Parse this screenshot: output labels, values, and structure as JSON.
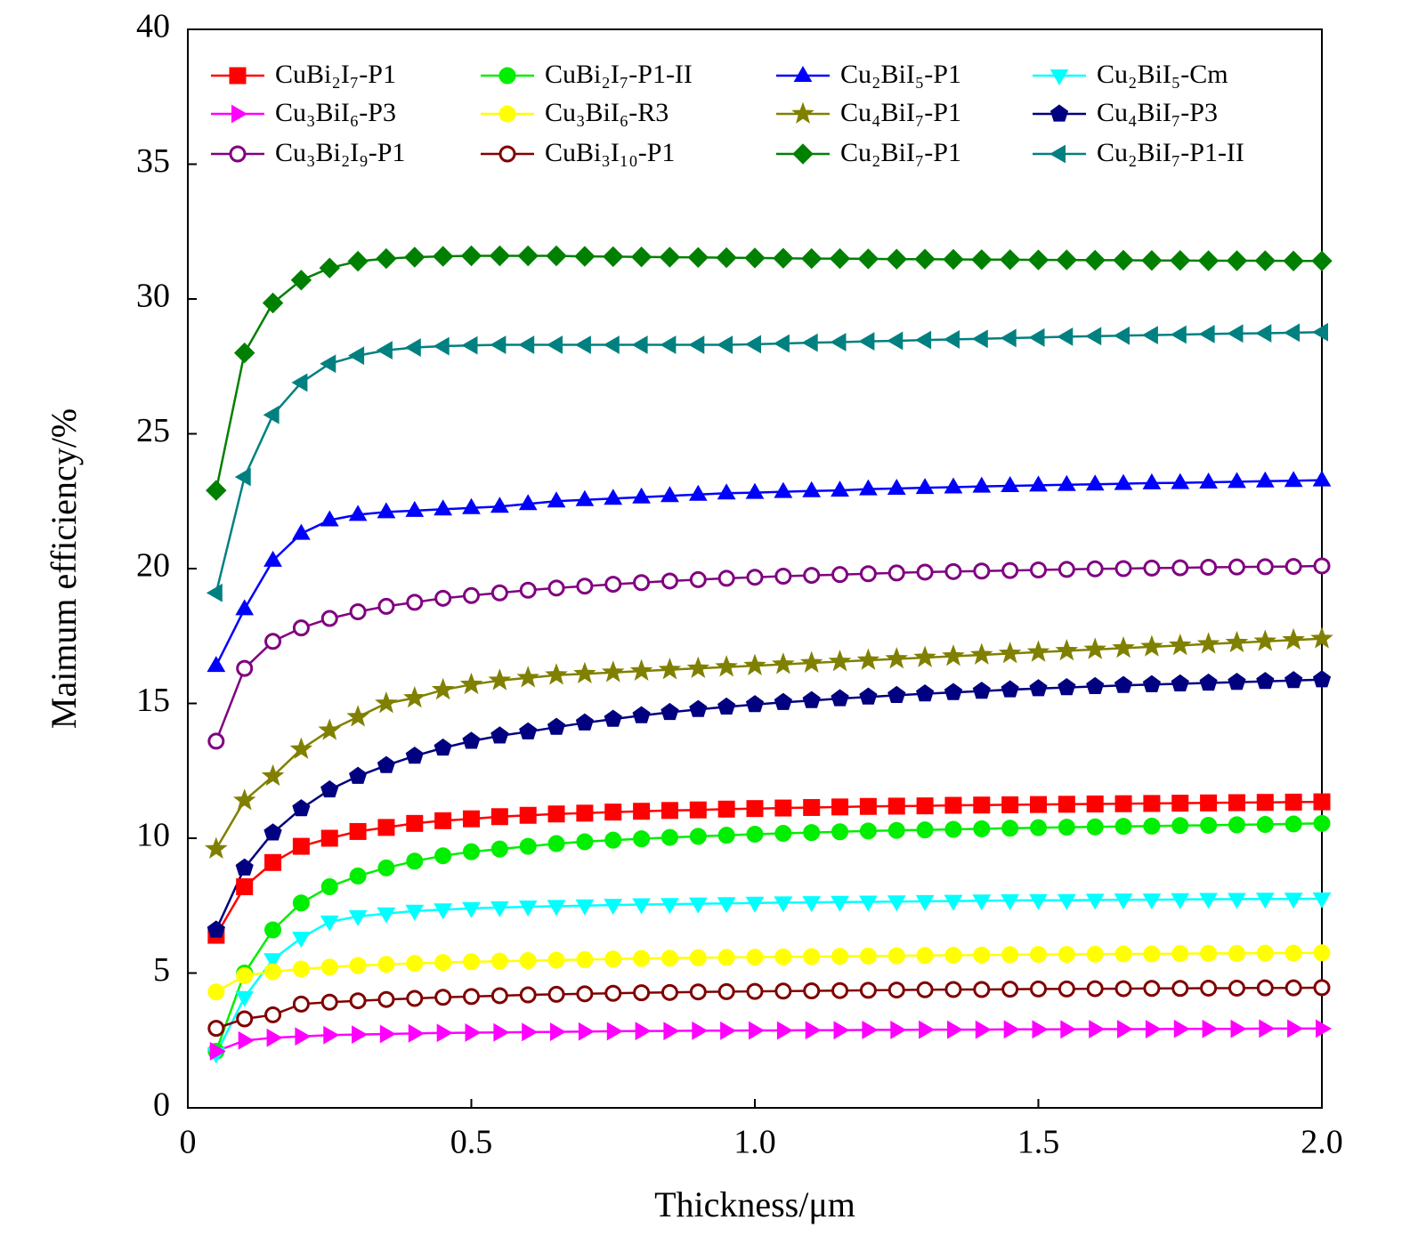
{
  "chart_data": {
    "type": "line",
    "x_label": "Thickness/μm",
    "y_label": "Maimum efficiency/%",
    "xlim": [
      0,
      2
    ],
    "xticks": [
      0,
      0.5,
      {
        "value": 1,
        "label": "1.0"
      },
      1.5,
      {
        "value": 2,
        "label": "2.0"
      }
    ],
    "ylim": [
      0,
      40
    ],
    "yticks": [
      0,
      5,
      10,
      15,
      20,
      25,
      30,
      35,
      40
    ],
    "x": [
      0.05,
      0.1,
      0.15,
      0.2,
      0.25,
      0.3,
      0.35,
      0.4,
      0.45,
      0.5,
      0.55,
      0.6,
      0.65,
      0.7,
      0.75,
      0.8,
      0.85,
      0.9,
      0.95,
      1.0,
      1.05,
      1.1,
      1.15,
      1.2,
      1.25,
      1.3,
      1.35,
      1.4,
      1.45,
      1.5,
      1.55,
      1.6,
      1.65,
      1.7,
      1.75,
      1.8,
      1.85,
      1.9,
      1.95,
      2.0
    ],
    "series": [
      {
        "name": "CuBi₂I₇-P1",
        "color": "#ff0000",
        "marker": "square",
        "values": [
          6.4,
          8.2,
          9.1,
          9.7,
          10.0,
          10.25,
          10.4,
          10.55,
          10.65,
          10.72,
          10.8,
          10.85,
          10.9,
          10.93,
          10.97,
          11.0,
          11.03,
          11.05,
          11.08,
          11.1,
          11.12,
          11.14,
          11.16,
          11.18,
          11.19,
          11.2,
          11.22,
          11.23,
          11.24,
          11.25,
          11.26,
          11.27,
          11.28,
          11.29,
          11.3,
          11.31,
          11.32,
          11.33,
          11.34,
          11.35
        ]
      },
      {
        "name": "CuBi₂I₇-P1-II",
        "color": "#00ee00",
        "marker": "circle",
        "values": [
          2.1,
          5.0,
          6.6,
          7.6,
          8.2,
          8.6,
          8.9,
          9.15,
          9.35,
          9.5,
          9.6,
          9.7,
          9.8,
          9.87,
          9.93,
          9.98,
          10.03,
          10.07,
          10.11,
          10.15,
          10.18,
          10.21,
          10.24,
          10.27,
          10.29,
          10.31,
          10.33,
          10.35,
          10.37,
          10.39,
          10.41,
          10.42,
          10.44,
          10.45,
          10.47,
          10.48,
          10.5,
          10.51,
          10.53,
          10.55
        ]
      },
      {
        "name": "Cu₂BiI₅-P1",
        "color": "#0000ff",
        "marker": "triangle-up",
        "values": [
          16.4,
          18.5,
          20.3,
          21.3,
          21.8,
          22.0,
          22.1,
          22.15,
          22.2,
          22.25,
          22.3,
          22.4,
          22.5,
          22.55,
          22.6,
          22.65,
          22.7,
          22.75,
          22.8,
          22.82,
          22.85,
          22.88,
          22.9,
          22.95,
          22.97,
          23.0,
          23.02,
          23.05,
          23.07,
          23.09,
          23.11,
          23.13,
          23.15,
          23.17,
          23.18,
          23.2,
          23.22,
          23.24,
          23.26,
          23.28
        ]
      },
      {
        "name": "Cu₂BiI₅-Cm",
        "color": "#00ffff",
        "marker": "triangle-down",
        "values": [
          2.0,
          4.1,
          5.5,
          6.3,
          6.9,
          7.1,
          7.2,
          7.3,
          7.35,
          7.4,
          7.43,
          7.46,
          7.48,
          7.5,
          7.52,
          7.54,
          7.55,
          7.57,
          7.58,
          7.6,
          7.61,
          7.62,
          7.63,
          7.64,
          7.65,
          7.66,
          7.67,
          7.68,
          7.69,
          7.7,
          7.7,
          7.71,
          7.72,
          7.72,
          7.73,
          7.74,
          7.74,
          7.75,
          7.75,
          7.76
        ]
      },
      {
        "name": "Cu₃BiI₆-P3",
        "color": "#ff00ff",
        "marker": "triangle-right",
        "values": [
          2.1,
          2.5,
          2.6,
          2.65,
          2.7,
          2.72,
          2.74,
          2.76,
          2.78,
          2.79,
          2.8,
          2.81,
          2.82,
          2.83,
          2.84,
          2.85,
          2.85,
          2.86,
          2.86,
          2.87,
          2.87,
          2.88,
          2.88,
          2.89,
          2.89,
          2.9,
          2.9,
          2.9,
          2.91,
          2.91,
          2.91,
          2.92,
          2.92,
          2.92,
          2.93,
          2.93,
          2.93,
          2.94,
          2.94,
          2.94
        ]
      },
      {
        "name": "Cu₃BiI₆-R3",
        "color": "#ffff00",
        "marker": "circle",
        "values": [
          4.3,
          4.9,
          5.05,
          5.15,
          5.22,
          5.28,
          5.32,
          5.36,
          5.39,
          5.42,
          5.44,
          5.46,
          5.48,
          5.5,
          5.52,
          5.54,
          5.55,
          5.57,
          5.58,
          5.59,
          5.6,
          5.61,
          5.62,
          5.63,
          5.64,
          5.65,
          5.66,
          5.67,
          5.68,
          5.69,
          5.69,
          5.7,
          5.71,
          5.71,
          5.72,
          5.73,
          5.73,
          5.74,
          5.74,
          5.75
        ]
      },
      {
        "name": "Cu₄BiI₇-P1",
        "color": "#808000",
        "marker": "star",
        "values": [
          9.6,
          11.4,
          12.3,
          13.3,
          14.0,
          14.5,
          15.0,
          15.2,
          15.5,
          15.7,
          15.85,
          15.95,
          16.05,
          16.1,
          16.15,
          16.2,
          16.25,
          16.3,
          16.35,
          16.4,
          16.45,
          16.5,
          16.55,
          16.6,
          16.65,
          16.7,
          16.75,
          16.8,
          16.85,
          16.9,
          16.95,
          17.0,
          17.05,
          17.1,
          17.15,
          17.2,
          17.25,
          17.3,
          17.35,
          17.4
        ]
      },
      {
        "name": "Cu₄BiI₇-P3",
        "color": "#000080",
        "marker": "pentagon",
        "values": [
          6.6,
          8.9,
          10.2,
          11.1,
          11.8,
          12.3,
          12.7,
          13.05,
          13.35,
          13.6,
          13.8,
          13.95,
          14.12,
          14.28,
          14.42,
          14.55,
          14.67,
          14.78,
          14.87,
          14.96,
          15.04,
          15.11,
          15.18,
          15.24,
          15.3,
          15.36,
          15.41,
          15.46,
          15.51,
          15.55,
          15.59,
          15.63,
          15.67,
          15.7,
          15.73,
          15.76,
          15.79,
          15.82,
          15.85,
          15.88
        ]
      },
      {
        "name": "Cu₃Bi₂I₉-P1",
        "color": "#800080",
        "marker": "circle-open",
        "values": [
          13.6,
          16.3,
          17.3,
          17.8,
          18.15,
          18.4,
          18.6,
          18.75,
          18.9,
          19.0,
          19.1,
          19.2,
          19.28,
          19.35,
          19.42,
          19.48,
          19.54,
          19.59,
          19.64,
          19.68,
          19.72,
          19.75,
          19.78,
          19.81,
          19.84,
          19.87,
          19.89,
          19.91,
          19.93,
          19.95,
          19.97,
          19.99,
          20.0,
          20.02,
          20.03,
          20.05,
          20.06,
          20.07,
          20.08,
          20.1
        ]
      },
      {
        "name": "CuBi₃I₁₀-P1",
        "color": "#800000",
        "marker": "circle-open",
        "values": [
          2.95,
          3.3,
          3.45,
          3.85,
          3.92,
          3.97,
          4.02,
          4.06,
          4.1,
          4.13,
          4.16,
          4.19,
          4.21,
          4.23,
          4.25,
          4.27,
          4.28,
          4.3,
          4.31,
          4.32,
          4.33,
          4.34,
          4.35,
          4.36,
          4.37,
          4.38,
          4.39,
          4.39,
          4.4,
          4.41,
          4.41,
          4.42,
          4.42,
          4.43,
          4.43,
          4.44,
          4.44,
          4.45,
          4.45,
          4.46
        ]
      },
      {
        "name": "Cu₂BiI₇-P1",
        "color": "#008000",
        "marker": "diamond",
        "values": [
          22.9,
          28.0,
          29.85,
          30.7,
          31.15,
          31.4,
          31.5,
          31.55,
          31.58,
          31.6,
          31.6,
          31.6,
          31.6,
          31.58,
          31.57,
          31.56,
          31.55,
          31.54,
          31.53,
          31.52,
          31.51,
          31.5,
          31.5,
          31.49,
          31.48,
          31.48,
          31.47,
          31.46,
          31.46,
          31.45,
          31.45,
          31.44,
          31.44,
          31.43,
          31.43,
          31.42,
          31.42,
          31.42,
          31.41,
          31.41
        ]
      },
      {
        "name": "Cu₂BiI₇-P1-II",
        "color": "#008080",
        "marker": "triangle-left",
        "values": [
          19.1,
          23.4,
          25.7,
          26.9,
          27.6,
          27.9,
          28.1,
          28.2,
          28.25,
          28.28,
          28.3,
          28.3,
          28.3,
          28.3,
          28.3,
          28.3,
          28.3,
          28.3,
          28.3,
          28.32,
          28.35,
          28.38,
          28.4,
          28.43,
          28.45,
          28.48,
          28.5,
          28.52,
          28.55,
          28.57,
          28.6,
          28.62,
          28.64,
          28.66,
          28.68,
          28.7,
          28.72,
          28.73,
          28.75,
          28.77
        ]
      }
    ]
  }
}
